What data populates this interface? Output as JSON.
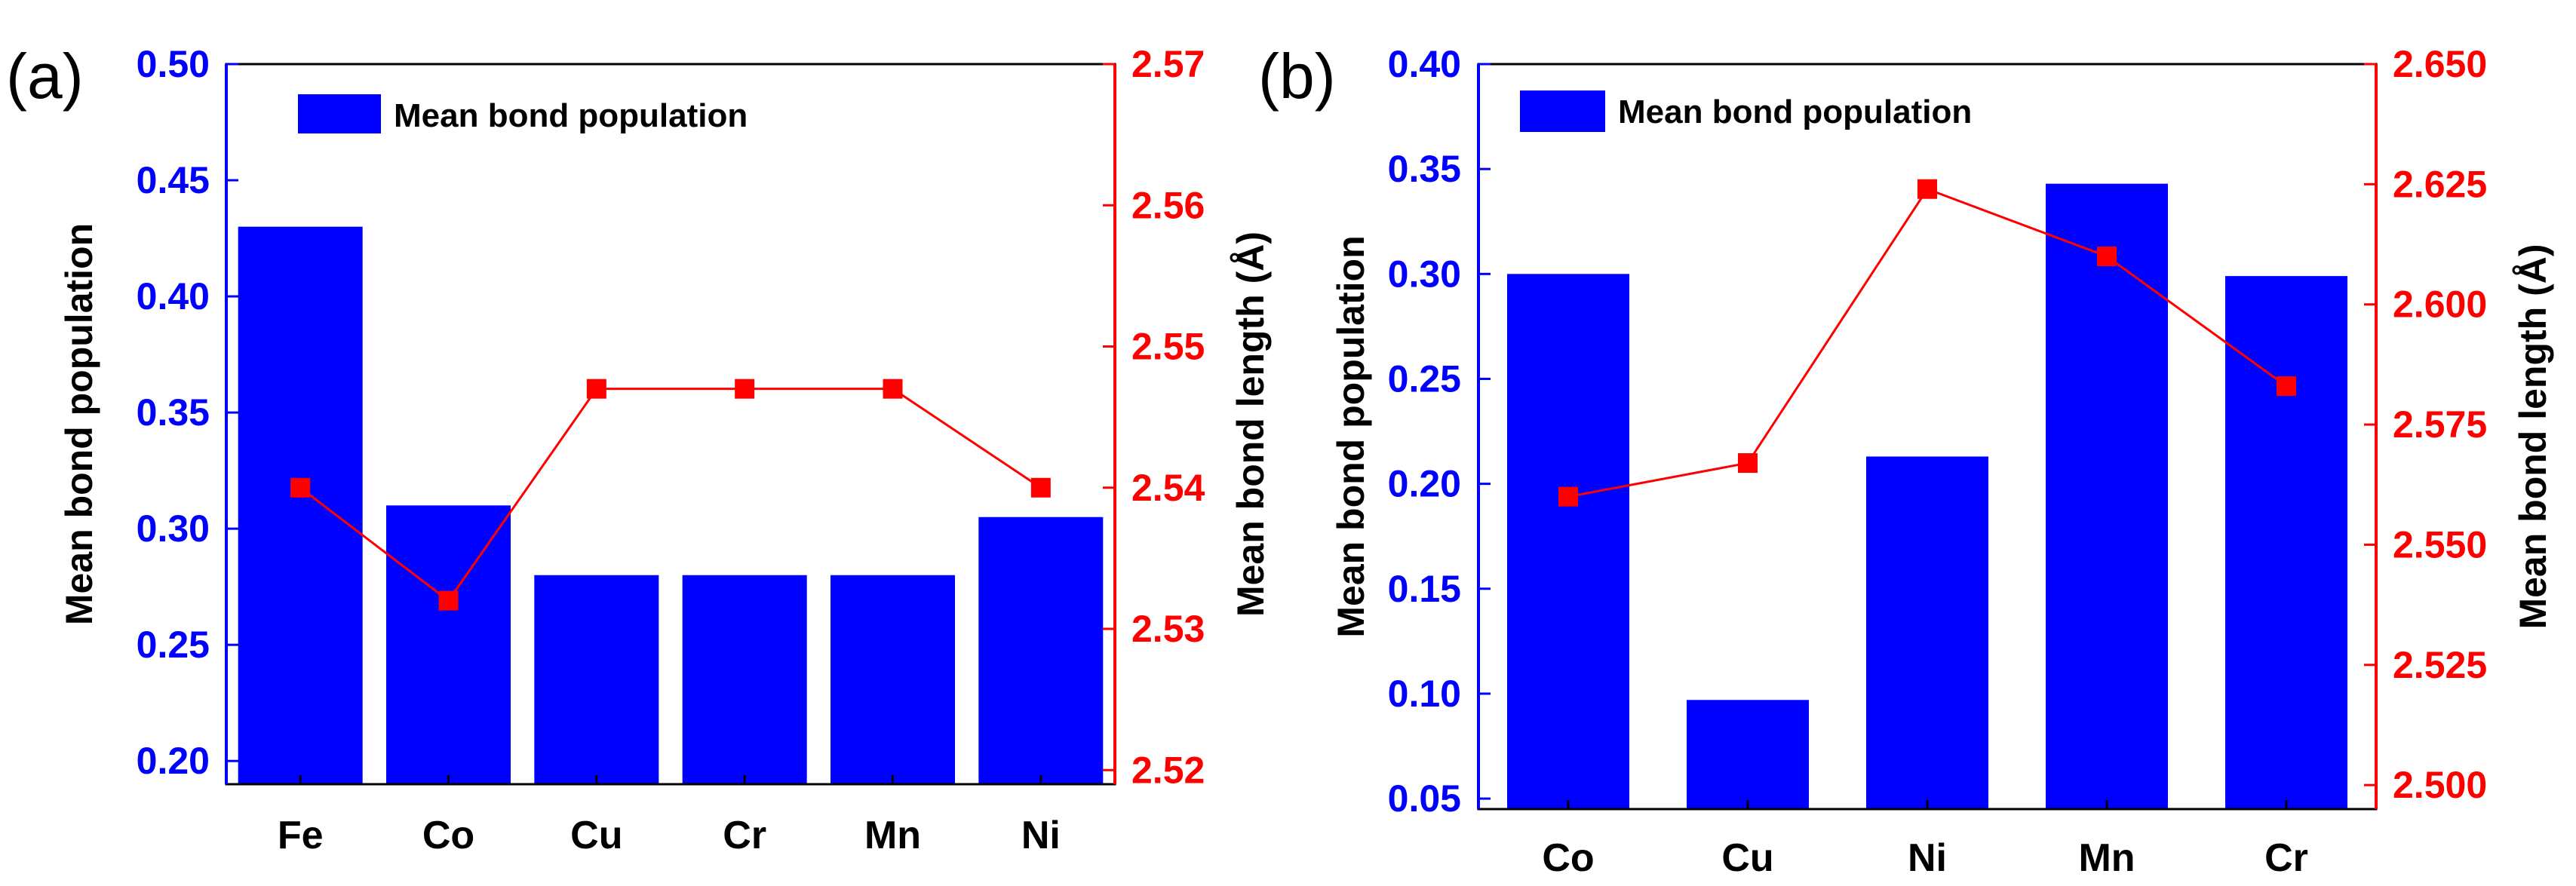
{
  "colors": {
    "bar": "#0000ff",
    "line": "#ff0000",
    "left_axis": "#0000ff",
    "right_axis": "#ff0000",
    "frame": "#000000"
  },
  "chart_data": [
    {
      "type": "bar",
      "panel_label": "(a)",
      "legend": [
        "Mean bond population"
      ],
      "legend_position": "top-left",
      "categories": [
        "Fe",
        "Co",
        "Cu",
        "Cr",
        "Mn",
        "Ni"
      ],
      "series": [
        {
          "name": "Mean bond population",
          "type": "bar",
          "axis": "left",
          "values": [
            0.43,
            0.31,
            0.28,
            0.28,
            0.28,
            0.305
          ]
        },
        {
          "name": "Mean bond length",
          "type": "line",
          "axis": "right",
          "values": [
            2.54,
            2.532,
            2.547,
            2.547,
            2.547,
            2.54
          ]
        }
      ],
      "ylabel": "Mean bond population",
      "y2label": "Mean bond length (Å)",
      "ylim": [
        0.19,
        0.5
      ],
      "y2lim": [
        2.519,
        2.57
      ],
      "yticks": [
        0.2,
        0.25,
        0.3,
        0.35,
        0.4,
        0.45,
        0.5
      ],
      "ytick_labels": [
        "0.20",
        "0.25",
        "0.30",
        "0.35",
        "0.40",
        "0.45",
        "0.50"
      ],
      "y2ticks": [
        2.52,
        2.53,
        2.54,
        2.55,
        2.56,
        2.57
      ],
      "y2tick_labels": [
        "2.52",
        "2.53",
        "2.54",
        "2.55",
        "2.56",
        "2.57"
      ]
    },
    {
      "type": "bar",
      "panel_label": "(b)",
      "legend": [
        "Mean bond population"
      ],
      "legend_position": "top-left",
      "categories": [
        "Co",
        "Cu",
        "Ni",
        "Mn",
        "Cr"
      ],
      "series": [
        {
          "name": "Mean bond population",
          "type": "bar",
          "axis": "left",
          "values": [
            0.3,
            0.097,
            0.213,
            0.343,
            0.299
          ]
        },
        {
          "name": "Mean bond length",
          "type": "line",
          "axis": "right",
          "values": [
            2.56,
            2.567,
            2.624,
            2.61,
            2.583
          ]
        }
      ],
      "ylabel": "Mean bond population",
      "y2label": "Mean bond length (Å)",
      "ylim": [
        0.045,
        0.4
      ],
      "y2lim": [
        2.495,
        2.65
      ],
      "yticks": [
        0.05,
        0.1,
        0.15,
        0.2,
        0.25,
        0.3,
        0.35,
        0.4
      ],
      "ytick_labels": [
        "0.05",
        "0.10",
        "0.15",
        "0.20",
        "0.25",
        "0.30",
        "0.35",
        "0.40"
      ],
      "y2ticks": [
        2.5,
        2.525,
        2.55,
        2.575,
        2.6,
        2.625,
        2.65
      ],
      "y2tick_labels": [
        "2.500",
        "2.525",
        "2.550",
        "2.575",
        "2.600",
        "2.625",
        "2.650"
      ]
    }
  ]
}
